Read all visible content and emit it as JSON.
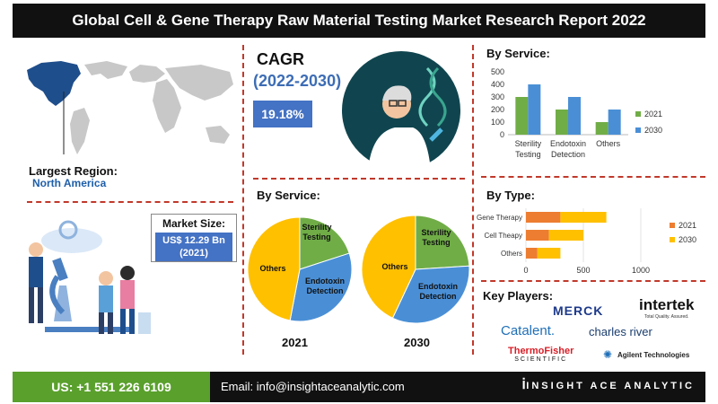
{
  "title": "Global Cell & Gene Therapy Raw Material Testing Market Research Report 2022",
  "largest_region": {
    "label": "Largest Region:",
    "value": "North America"
  },
  "market_size": {
    "label": "Market Size:",
    "value_line1": "US$ 12.29 Bn",
    "value_line2": "(2021)"
  },
  "cagr": {
    "title": "CAGR",
    "years": "(2022-2030)",
    "value": "19.18%"
  },
  "service_pies": {
    "title": "By Service:",
    "labels": [
      "Sterility Testing",
      "Endotoxin Detection",
      "Others"
    ],
    "colors": [
      "#70ad47",
      "#4a8fd6",
      "#ffc000"
    ]
  },
  "by_service_bar_title": "By Service:",
  "by_type_title": "By Type:",
  "key_players": {
    "title": "Key Players:",
    "logos": [
      "MERCK",
      "intertek",
      "Total Quality. Assured.",
      "Catalent.",
      "charles river",
      "ThermoFisher",
      "SCIENTIFIC",
      "Agilent Technologies"
    ]
  },
  "footer": {
    "phone": "US: +1 551 226 6109",
    "email": "Email: info@insightaceanalytic.com",
    "brand": "INSIGHT ACE ANALYTIC"
  },
  "chart_data": [
    {
      "type": "bar",
      "title": "By Service:",
      "categories": [
        "Sterility Testing",
        "Endotoxin Detection",
        "Others"
      ],
      "series": [
        {
          "name": "2021",
          "values": [
            300,
            200,
            100
          ],
          "color": "#70ad47"
        },
        {
          "name": "2030",
          "values": [
            400,
            300,
            200
          ],
          "color": "#4a8fd6"
        }
      ],
      "ylim": [
        0,
        500
      ],
      "yticks": [
        0,
        100,
        200,
        300,
        400,
        500
      ],
      "legend": "right"
    },
    {
      "type": "bar",
      "orientation": "horizontal",
      "stacked": true,
      "title": "By Type:",
      "categories": [
        "Gene Therapy",
        "Cell Theapy",
        "Others"
      ],
      "series": [
        {
          "name": "2021",
          "values": [
            300,
            200,
            100
          ],
          "color": "#ed7d31"
        },
        {
          "name": "2030",
          "values": [
            400,
            300,
            200
          ],
          "color": "#ffc000"
        }
      ],
      "xlim": [
        0,
        1000
      ],
      "xticks": [
        0,
        500,
        1000
      ],
      "legend": "right"
    },
    {
      "type": "pie",
      "label": "2021",
      "categories": [
        "Sterility Testing",
        "Endotoxin Detection",
        "Others"
      ],
      "values": [
        20,
        33,
        47
      ]
    },
    {
      "type": "pie",
      "label": "2030",
      "categories": [
        "Sterility Testing",
        "Endotoxin Detection",
        "Others"
      ],
      "values": [
        24,
        33,
        43
      ]
    }
  ]
}
